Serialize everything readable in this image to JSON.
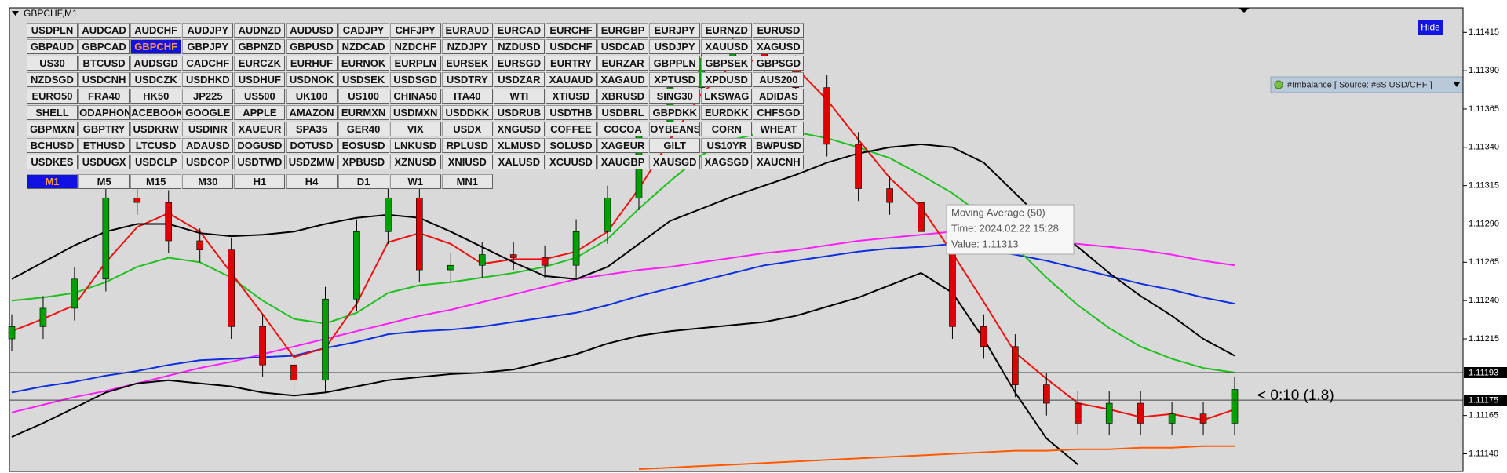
{
  "header": "GBPCHF,M1",
  "hide_button": "Hide",
  "indicator_panel": "#Imbalance [ Source: #6S USD/CHF ]",
  "countdown": "< 0:10 (1.8)",
  "tooltip": {
    "title": "Moving Average (50)",
    "time": "Time: 2024.02.22 15:28",
    "value": "Value: 1.11313"
  },
  "symbol_buttons": [
    [
      "USDPLN",
      "AUDCAD",
      "AUDCHF",
      "AUDJPY",
      "AUDNZD",
      "AUDUSD",
      "CADJPY",
      "CHFJPY",
      "EURAUD",
      "EURCAD",
      "EURCHF",
      "EURGBP",
      "EURJPY",
      "EURNZD",
      "EURUSD"
    ],
    [
      "GBPAUD",
      "GBPCAD",
      "GBPCHF",
      "GBPJPY",
      "GBPNZD",
      "GBPUSD",
      "NZDCAD",
      "NZDCHF",
      "NZDJPY",
      "NZDUSD",
      "USDCHF",
      "USDCAD",
      "USDJPY",
      "XAUUSD",
      "XAGUSD"
    ],
    [
      "US30",
      "BTCUSD",
      "AUDSGD",
      "CADCHF",
      "EURCZK",
      "EURHUF",
      "EURNOK",
      "EURPLN",
      "EURSEK",
      "EURSGD",
      "EURTRY",
      "EURZAR",
      "GBPPLN",
      "GBPSEK",
      "GBPSGD"
    ],
    [
      "NZDSGD",
      "USDCNH",
      "USDCZK",
      "USDHKD",
      "USDHUF",
      "USDNOK",
      "USDSEK",
      "USDSGD",
      "USDTRY",
      "USDZAR",
      "XAUAUD",
      "XAGAUD",
      "XPTUSD",
      "XPDUSD",
      "AUS200"
    ],
    [
      "EURO50",
      "FRA40",
      "HK50",
      "JP225",
      "US500",
      "UK100",
      "US100",
      "CHINA50",
      "ITA40",
      "WTI",
      "XTIUSD",
      "XBRUSD",
      "SING30",
      "LKSWAG",
      "ADIDAS"
    ],
    [
      "SHELL",
      "ODAPHON",
      "ACEBOOK",
      "GOOGLE",
      "APPLE",
      "AMAZON",
      "EURMXN",
      "USDMXN",
      "USDDKK",
      "USDRUB",
      "USDTHB",
      "USDBRL",
      "GBPDKK",
      "EURDKK",
      "CHFSGD"
    ],
    [
      "GBPMXN",
      "GBPTRY",
      "USDKRW",
      "USDINR",
      "XAUEUR",
      "SPA35",
      "GER40",
      "VIX",
      "USDX",
      "XNGUSD",
      "COFFEE",
      "COCOA",
      "OYBEANS",
      "CORN",
      "WHEAT"
    ],
    [
      "BCHUSD",
      "ETHUSD",
      "LTCUSD",
      "ADAUSD",
      "DOGUSD",
      "DOTUSD",
      "EOSUSD",
      "LNKUSD",
      "RPLUSD",
      "XLMUSD",
      "SOLUSD",
      "XAGEUR",
      "GILT",
      "US10YR",
      "BWPUSD"
    ],
    [
      "USDKES",
      "USDUGX",
      "USDCLP",
      "USDCOP",
      "USDTWD",
      "USDZMW",
      "XPBUSD",
      "XZNUSD",
      "XNIUSD",
      "XALUSD",
      "XCUUSD",
      "XAUGBP",
      "XAUSGD",
      "XAGSGD",
      "XAUCNH"
    ]
  ],
  "selected_symbol": "GBPCHF",
  "timeframes": [
    "M1",
    "M5",
    "M15",
    "M30",
    "H1",
    "H4",
    "D1",
    "W1",
    "MN1"
  ],
  "selected_timeframe": "M1",
  "chart_data": {
    "type": "candlestick",
    "categories": [
      null,
      null,
      null,
      null,
      null,
      null,
      null,
      null,
      null,
      null,
      null,
      null,
      null,
      null,
      null,
      null,
      null,
      null,
      null,
      null,
      null,
      null,
      null,
      null,
      null,
      null,
      null,
      null,
      null,
      null,
      null,
      null,
      null,
      null,
      null,
      null,
      null,
      null,
      null,
      null
    ],
    "open": [
      1.11215,
      1.11223,
      1.11235,
      1.11254,
      1.11307,
      1.11304,
      1.11279,
      1.11273,
      1.11223,
      1.11198,
      1.11188,
      1.11241,
      1.11285,
      1.11307,
      1.1126,
      1.11263,
      1.1127,
      1.11268,
      1.11263,
      1.11285,
      1.11307,
      1.11348,
      1.11379,
      1.11398,
      1.11404,
      1.11392,
      1.11379,
      1.11342,
      1.11313,
      1.11304,
      1.11285,
      1.11223,
      1.1121,
      1.11185,
      1.11173,
      1.1116,
      1.11173,
      1.1116,
      1.11166,
      1.1116
    ],
    "high": [
      1.11231,
      1.11243,
      1.11262,
      1.11315,
      1.11315,
      1.11312,
      1.11287,
      1.11281,
      1.11231,
      1.11206,
      1.11249,
      1.11293,
      1.11315,
      1.11315,
      1.11271,
      1.11278,
      1.11278,
      1.11276,
      1.11293,
      1.11315,
      1.11356,
      1.11387,
      1.11406,
      1.11412,
      1.11412,
      1.114,
      1.11387,
      1.1135,
      1.11321,
      1.11312,
      1.11293,
      1.11231,
      1.11218,
      1.11193,
      1.11181,
      1.11181,
      1.11181,
      1.11174,
      1.11174,
      1.1119
    ],
    "low": [
      1.11207,
      1.11215,
      1.11227,
      1.11246,
      1.11296,
      1.11271,
      1.11265,
      1.11215,
      1.1119,
      1.1118,
      1.1118,
      1.11233,
      1.11277,
      1.11252,
      1.11252,
      1.11255,
      1.1126,
      1.11255,
      1.11255,
      1.11277,
      1.11299,
      1.1134,
      1.11371,
      1.1139,
      1.11384,
      1.11371,
      1.11334,
      1.11305,
      1.11296,
      1.11277,
      1.11215,
      1.11202,
      1.11177,
      1.11165,
      1.11152,
      1.11152,
      1.11152,
      1.11152,
      1.11152,
      1.11152
    ],
    "close": [
      1.11223,
      1.11235,
      1.11254,
      1.11307,
      1.11304,
      1.11279,
      1.11273,
      1.11223,
      1.11198,
      1.11188,
      1.11241,
      1.11285,
      1.11307,
      1.1126,
      1.11263,
      1.1127,
      1.11268,
      1.11263,
      1.11285,
      1.11307,
      1.11348,
      1.11379,
      1.11398,
      1.11404,
      1.11392,
      1.11379,
      1.11342,
      1.11313,
      1.11304,
      1.11285,
      1.11223,
      1.1121,
      1.11185,
      1.11173,
      1.1116,
      1.11173,
      1.1116,
      1.11166,
      1.1116,
      1.11182
    ],
    "up_color": "#00a000",
    "down_color": "#e00000",
    "series": [
      {
        "color": "#ff20ff",
        "values": [
          1.11167,
          1.11172,
          1.11177,
          1.11181,
          1.11186,
          1.11191,
          1.11196,
          1.112,
          1.11205,
          1.1121,
          1.11215,
          1.1122,
          1.11225,
          1.1123,
          1.11234,
          1.11239,
          1.11244,
          1.11249,
          1.11254,
          1.11257,
          1.1126,
          1.11262,
          1.11265,
          1.11268,
          1.11271,
          1.11273,
          1.11276,
          1.11279,
          1.11281,
          1.11283,
          1.11285,
          1.11283,
          1.11281,
          1.11279,
          1.11277,
          1.11275,
          1.11273,
          1.1127,
          1.11266,
          1.11263
        ]
      },
      {
        "color": "#1030e0",
        "values": [
          1.1118,
          1.11184,
          1.11187,
          1.11191,
          1.11194,
          1.11198,
          1.11201,
          1.11202,
          1.11203,
          1.11204,
          1.11209,
          1.11213,
          1.11218,
          1.1122,
          1.11221,
          1.11223,
          1.11226,
          1.11229,
          1.11232,
          1.11237,
          1.11243,
          1.11248,
          1.11253,
          1.11258,
          1.11263,
          1.11266,
          1.11269,
          1.11272,
          1.11274,
          1.11275,
          1.11277,
          1.11273,
          1.1127,
          1.11266,
          1.11261,
          1.11256,
          1.11251,
          1.11247,
          1.11242,
          1.11238
        ]
      },
      {
        "color": "#20c020",
        "values": [
          1.1124,
          1.11242,
          1.11245,
          1.11252,
          1.11262,
          1.11268,
          1.11265,
          1.11255,
          1.1124,
          1.11228,
          1.11225,
          1.11232,
          1.11245,
          1.1125,
          1.11252,
          1.11255,
          1.11258,
          1.11262,
          1.11268,
          1.1128,
          1.113,
          1.11318,
          1.11335,
          1.11345,
          1.1135,
          1.1135,
          1.11346,
          1.1134,
          1.11333,
          1.11322,
          1.1131,
          1.11295,
          1.11275,
          1.11255,
          1.11237,
          1.11222,
          1.1121,
          1.11202,
          1.11196,
          1.11193
        ]
      },
      {
        "color": "#ee1010",
        "values": [
          1.1122,
          1.11228,
          1.11237,
          1.11265,
          1.11288,
          1.11297,
          1.11285,
          1.11258,
          1.11231,
          1.11203,
          1.11209,
          1.11238,
          1.11278,
          1.11284,
          1.11277,
          1.11264,
          1.11267,
          1.11267,
          1.11272,
          1.11285,
          1.11313,
          1.11345,
          1.11375,
          1.11394,
          1.11398,
          1.11392,
          1.11371,
          1.11345,
          1.1132,
          1.11301,
          1.11271,
          1.11239,
          1.11206,
          1.11189,
          1.11173,
          1.11169,
          1.11164,
          1.11166,
          1.11162,
          1.11169
        ]
      },
      {
        "color": "#000000",
        "values": [
          1.11254,
          1.11265,
          1.11276,
          1.11285,
          1.1129,
          1.1129,
          1.11284,
          1.11282,
          1.11283,
          1.11285,
          1.1129,
          1.11294,
          1.11296,
          1.11294,
          1.11285,
          1.11275,
          1.11265,
          1.11256,
          1.11254,
          1.11262,
          1.11277,
          1.11292,
          1.113,
          1.11308,
          1.11315,
          1.11322,
          1.1133,
          1.11336,
          1.1134,
          1.11342,
          1.1134,
          1.1133,
          1.1131,
          1.1129,
          1.11275,
          1.11258,
          1.11243,
          1.1123,
          1.11215,
          1.11204
        ]
      },
      {
        "color": "#000000",
        "values": [
          1.11151,
          1.1116,
          1.1117,
          1.1118,
          1.11186,
          1.11188,
          1.11186,
          1.11184,
          1.1118,
          1.11178,
          1.1118,
          1.11184,
          1.11188,
          1.1119,
          1.11192,
          1.11193,
          1.11195,
          1.112,
          1.11205,
          1.11212,
          1.11217,
          1.1122,
          1.11222,
          1.11224,
          1.11226,
          1.1123,
          1.11236,
          1.11242,
          1.1125,
          1.11258,
          1.11245,
          1.11215,
          1.1118,
          1.1115,
          1.11133,
          null,
          null,
          null,
          null,
          null
        ]
      },
      {
        "color": "#ff5a00",
        "values": [
          null,
          null,
          null,
          null,
          null,
          null,
          null,
          null,
          null,
          null,
          null,
          null,
          null,
          null,
          null,
          null,
          null,
          null,
          null,
          null,
          1.1113,
          1.11131,
          1.11132,
          1.11133,
          1.11134,
          1.11135,
          1.11136,
          1.11137,
          1.11138,
          1.11139,
          1.1114,
          1.11141,
          1.11142,
          1.11142,
          1.11143,
          1.11143,
          1.11144,
          1.11144,
          1.11145,
          1.11145
        ]
      }
    ],
    "price_lines": [
      1.11193,
      1.11175
    ],
    "ylim": [
      1.11129,
      1.1143
    ],
    "yticks": [
      1.11415,
      {
        "value": 1.1139,
        "label": "1.11390"
      },
      1.11365,
      {
        "value": 1.1134,
        "label": "1.11340"
      },
      1.11315,
      {
        "value": 1.1129,
        "label": "1.11290"
      },
      1.11265,
      {
        "value": 1.1124,
        "label": "1.11240"
      },
      1.11215,
      1.11165,
      {
        "value": 1.1114,
        "label": "1.11140"
      }
    ]
  }
}
